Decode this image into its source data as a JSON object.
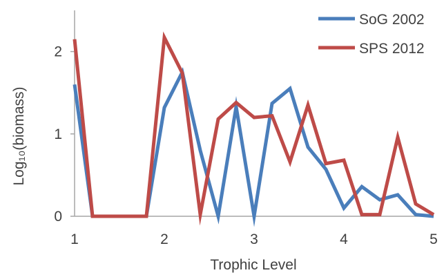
{
  "chart_data": {
    "type": "line",
    "xlabel": "Trophic  Level",
    "ylabel": "Log₁₀(biomass)",
    "xlim": [
      1,
      5
    ],
    "ylim": [
      0,
      2.5
    ],
    "xticks": [
      "1",
      "2",
      "3",
      "4",
      "5"
    ],
    "yticks": [
      "0",
      "1",
      "2"
    ],
    "grid": false,
    "legend": "top-right",
    "x": [
      1.0,
      1.2,
      1.4,
      1.6,
      1.8,
      2.0,
      2.2,
      2.4,
      2.6,
      2.8,
      3.0,
      3.2,
      3.4,
      3.6,
      3.8,
      4.0,
      4.2,
      4.4,
      4.6,
      4.8,
      5.0
    ],
    "series": [
      {
        "name": "SoG 2002",
        "color": "#4a7ebb",
        "values": [
          1.6,
          0.0,
          0.0,
          0.0,
          0.0,
          1.32,
          1.75,
          0.8,
          0.0,
          1.33,
          0.0,
          1.37,
          1.55,
          0.84,
          0.57,
          0.1,
          0.36,
          0.2,
          0.26,
          0.02,
          0.0
        ]
      },
      {
        "name": "SPS 2012",
        "color": "#be4b48",
        "values": [
          2.15,
          0.0,
          0.0,
          0.0,
          0.0,
          2.17,
          1.74,
          0.02,
          1.18,
          1.38,
          1.2,
          1.22,
          0.66,
          1.35,
          0.64,
          0.68,
          0.02,
          0.02,
          0.96,
          0.15,
          0.02
        ]
      }
    ]
  }
}
